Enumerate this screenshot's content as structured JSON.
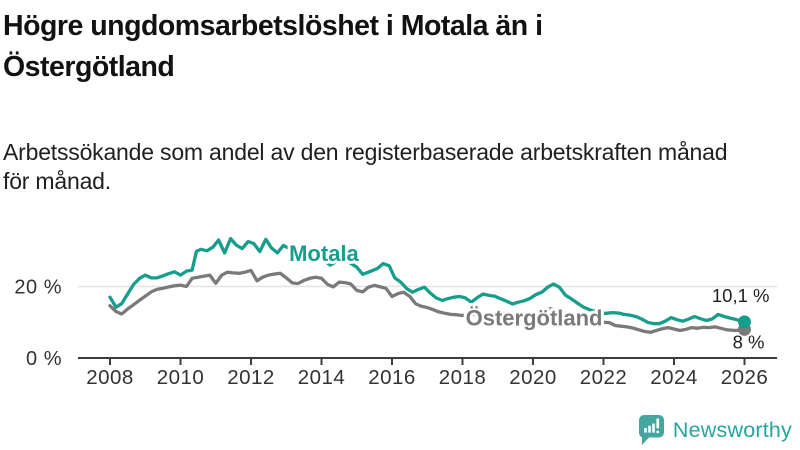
{
  "page": {
    "background": "#ffffff"
  },
  "title": {
    "lines": [
      "Högre ungdomsarbetslöshet i Motala än i",
      "Östergötland"
    ],
    "color": "#121212"
  },
  "subtitle": {
    "lines": [
      "Arbetssökande som andel av den registerbaserade arbetskraften månad",
      "för månad."
    ],
    "color": "#202020"
  },
  "chart_data": {
    "type": "line",
    "unit": "%",
    "x_axis": {
      "ticks": [
        2008,
        2010,
        2012,
        2014,
        2016,
        2018,
        2020,
        2022,
        2024,
        2026
      ],
      "range": [
        2007.1,
        2026.9
      ]
    },
    "y_axis": {
      "ticks": [
        {
          "value": 20,
          "label": "20 %"
        },
        {
          "value": 0,
          "label": "0 %"
        }
      ],
      "range": [
        0,
        36
      ],
      "grid_values": [
        20
      ]
    },
    "legend_position": "inline-labels",
    "series": [
      {
        "name": "Östergötland",
        "color": "#7a7a7a",
        "label_pos": [
          2020.03,
          11.3
        ],
        "end_dot": true,
        "end_label": "8 %",
        "points": [
          [
            2008.0,
            14.6
          ],
          [
            2008.17,
            13.0
          ],
          [
            2008.33,
            12.3
          ],
          [
            2008.5,
            13.7
          ],
          [
            2008.67,
            14.9
          ],
          [
            2008.83,
            16.1
          ],
          [
            2009.0,
            17.3
          ],
          [
            2009.17,
            18.5
          ],
          [
            2009.33,
            19.2
          ],
          [
            2009.5,
            19.5
          ],
          [
            2009.67,
            19.9
          ],
          [
            2009.83,
            20.2
          ],
          [
            2010.0,
            20.4
          ],
          [
            2010.17,
            20.0
          ],
          [
            2010.33,
            22.3
          ],
          [
            2010.5,
            22.6
          ],
          [
            2010.67,
            22.9
          ],
          [
            2010.83,
            23.2
          ],
          [
            2011.0,
            20.9
          ],
          [
            2011.17,
            23.2
          ],
          [
            2011.33,
            24.0
          ],
          [
            2011.5,
            23.8
          ],
          [
            2011.67,
            23.7
          ],
          [
            2011.83,
            24.0
          ],
          [
            2012.0,
            24.5
          ],
          [
            2012.17,
            21.6
          ],
          [
            2012.33,
            22.6
          ],
          [
            2012.5,
            23.2
          ],
          [
            2012.67,
            23.5
          ],
          [
            2012.83,
            23.7
          ],
          [
            2013.0,
            22.4
          ],
          [
            2013.17,
            21.0
          ],
          [
            2013.33,
            20.8
          ],
          [
            2013.5,
            21.7
          ],
          [
            2013.67,
            22.3
          ],
          [
            2013.83,
            22.6
          ],
          [
            2014.0,
            22.3
          ],
          [
            2014.17,
            20.6
          ],
          [
            2014.33,
            19.9
          ],
          [
            2014.5,
            21.2
          ],
          [
            2014.67,
            21.1
          ],
          [
            2014.83,
            20.7
          ],
          [
            2015.0,
            18.9
          ],
          [
            2015.17,
            18.5
          ],
          [
            2015.33,
            19.8
          ],
          [
            2015.5,
            20.3
          ],
          [
            2015.67,
            19.9
          ],
          [
            2015.83,
            19.5
          ],
          [
            2016.0,
            17.2
          ],
          [
            2016.17,
            18.0
          ],
          [
            2016.33,
            18.4
          ],
          [
            2016.5,
            17.3
          ],
          [
            2016.67,
            15.2
          ],
          [
            2016.83,
            14.5
          ],
          [
            2017.0,
            14.1
          ],
          [
            2017.17,
            13.5
          ],
          [
            2017.33,
            12.9
          ],
          [
            2017.5,
            12.5
          ],
          [
            2017.67,
            12.2
          ],
          [
            2017.83,
            12.1
          ],
          [
            2018.0,
            11.9
          ],
          [
            2018.25,
            12.1
          ],
          [
            2018.5,
            12.3
          ],
          [
            2018.75,
            12.0
          ],
          [
            2019.0,
            11.6
          ],
          [
            2019.25,
            11.2
          ],
          [
            2019.5,
            11.0
          ],
          [
            2019.75,
            11.4
          ],
          [
            2020.0,
            12.2
          ],
          [
            2020.25,
            13.2
          ],
          [
            2020.5,
            13.8
          ],
          [
            2020.75,
            13.1
          ],
          [
            2021.0,
            12.3
          ],
          [
            2021.25,
            11.5
          ],
          [
            2021.5,
            10.8
          ],
          [
            2021.75,
            10.3
          ],
          [
            2022.0,
            10.0
          ],
          [
            2022.17,
            9.9
          ],
          [
            2022.33,
            9.1
          ],
          [
            2022.5,
            8.9
          ],
          [
            2022.67,
            8.7
          ],
          [
            2022.83,
            8.4
          ],
          [
            2023.0,
            7.9
          ],
          [
            2023.17,
            7.4
          ],
          [
            2023.33,
            7.2
          ],
          [
            2023.5,
            7.7
          ],
          [
            2023.67,
            8.2
          ],
          [
            2023.83,
            8.5
          ],
          [
            2024.0,
            8.1
          ],
          [
            2024.17,
            7.7
          ],
          [
            2024.33,
            8.0
          ],
          [
            2024.5,
            8.5
          ],
          [
            2024.67,
            8.3
          ],
          [
            2024.83,
            8.6
          ],
          [
            2025.0,
            8.5
          ],
          [
            2025.17,
            8.7
          ],
          [
            2025.33,
            8.3
          ],
          [
            2025.5,
            7.9
          ],
          [
            2025.75,
            7.7
          ],
          [
            2026.0,
            8.0
          ]
        ]
      },
      {
        "name": "Motala",
        "color": "#179d8b",
        "label_pos": [
          2014.07,
          29.4
        ],
        "end_dot": true,
        "end_label": "10,1 %",
        "points": [
          [
            2008.0,
            17.0
          ],
          [
            2008.17,
            14.2
          ],
          [
            2008.33,
            15.2
          ],
          [
            2008.5,
            17.9
          ],
          [
            2008.67,
            20.6
          ],
          [
            2008.83,
            22.2
          ],
          [
            2009.0,
            23.2
          ],
          [
            2009.17,
            22.4
          ],
          [
            2009.33,
            22.4
          ],
          [
            2009.5,
            23.0
          ],
          [
            2009.67,
            23.6
          ],
          [
            2009.83,
            24.1
          ],
          [
            2010.0,
            23.2
          ],
          [
            2010.17,
            24.3
          ],
          [
            2010.33,
            24.6
          ],
          [
            2010.45,
            29.8
          ],
          [
            2010.58,
            30.4
          ],
          [
            2010.75,
            30.0
          ],
          [
            2010.92,
            31.0
          ],
          [
            2011.08,
            33.0
          ],
          [
            2011.25,
            29.4
          ],
          [
            2011.42,
            33.4
          ],
          [
            2011.58,
            31.6
          ],
          [
            2011.75,
            30.6
          ],
          [
            2011.92,
            32.6
          ],
          [
            2012.08,
            32.0
          ],
          [
            2012.25,
            29.8
          ],
          [
            2012.42,
            33.2
          ],
          [
            2012.58,
            30.8
          ],
          [
            2012.75,
            29.4
          ],
          [
            2012.92,
            31.5
          ],
          [
            2013.08,
            30.6
          ],
          [
            2013.33,
            29.6
          ],
          [
            2013.58,
            29.0
          ],
          [
            2013.83,
            28.2
          ],
          [
            2014.08,
            27.2
          ],
          [
            2014.25,
            26.0
          ],
          [
            2014.5,
            27.4
          ],
          [
            2014.75,
            27.0
          ],
          [
            2015.0,
            25.4
          ],
          [
            2015.17,
            23.4
          ],
          [
            2015.33,
            24.0
          ],
          [
            2015.58,
            25.0
          ],
          [
            2015.75,
            26.4
          ],
          [
            2015.92,
            25.8
          ],
          [
            2016.08,
            22.4
          ],
          [
            2016.25,
            21.2
          ],
          [
            2016.42,
            19.4
          ],
          [
            2016.58,
            18.4
          ],
          [
            2016.75,
            19.2
          ],
          [
            2016.92,
            19.8
          ],
          [
            2017.08,
            18.2
          ],
          [
            2017.25,
            16.8
          ],
          [
            2017.42,
            16.1
          ],
          [
            2017.58,
            16.6
          ],
          [
            2017.75,
            17.0
          ],
          [
            2017.92,
            17.2
          ],
          [
            2018.08,
            16.8
          ],
          [
            2018.25,
            15.6
          ],
          [
            2018.42,
            16.9
          ],
          [
            2018.58,
            17.9
          ],
          [
            2018.75,
            17.5
          ],
          [
            2018.92,
            17.3
          ],
          [
            2019.08,
            16.6
          ],
          [
            2019.25,
            15.9
          ],
          [
            2019.42,
            15.1
          ],
          [
            2019.58,
            15.6
          ],
          [
            2019.75,
            16.0
          ],
          [
            2019.92,
            16.7
          ],
          [
            2020.08,
            17.7
          ],
          [
            2020.25,
            18.4
          ],
          [
            2020.42,
            19.8
          ],
          [
            2020.58,
            20.7
          ],
          [
            2020.75,
            19.8
          ],
          [
            2020.92,
            17.6
          ],
          [
            2021.08,
            16.6
          ],
          [
            2021.25,
            15.4
          ],
          [
            2021.42,
            14.3
          ],
          [
            2021.58,
            13.6
          ],
          [
            2021.75,
            13.1
          ],
          [
            2021.92,
            12.5
          ],
          [
            2022.08,
            12.5
          ],
          [
            2022.25,
            12.7
          ],
          [
            2022.42,
            12.6
          ],
          [
            2022.58,
            12.2
          ],
          [
            2022.75,
            12.0
          ],
          [
            2022.92,
            11.6
          ],
          [
            2023.08,
            10.9
          ],
          [
            2023.25,
            10.0
          ],
          [
            2023.42,
            9.6
          ],
          [
            2023.58,
            9.6
          ],
          [
            2023.75,
            10.3
          ],
          [
            2023.92,
            11.3
          ],
          [
            2024.08,
            10.7
          ],
          [
            2024.25,
            10.3
          ],
          [
            2024.42,
            10.9
          ],
          [
            2024.58,
            11.6
          ],
          [
            2024.75,
            11.0
          ],
          [
            2024.92,
            10.5
          ],
          [
            2025.08,
            10.9
          ],
          [
            2025.25,
            12.2
          ],
          [
            2025.42,
            11.6
          ],
          [
            2025.58,
            11.2
          ],
          [
            2025.75,
            10.8
          ],
          [
            2026.0,
            10.1
          ]
        ]
      }
    ],
    "style": {
      "grid_color": "#e3e3e3",
      "axis_color": "#3d3d3d",
      "tick_label_color": "#333333",
      "end_label_color": "#1f1f1f",
      "label_halo": "#ffffff"
    }
  },
  "branding": {
    "name": "Newsworthy",
    "text_color": "#28a39c",
    "icon_color": "#43a7a0",
    "icon": "newsworthy-chart-bubble-icon"
  }
}
